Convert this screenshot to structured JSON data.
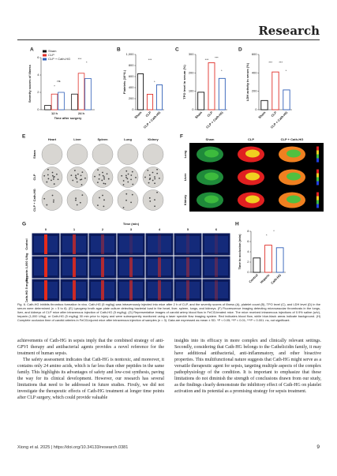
{
  "header": {
    "title": "Research"
  },
  "figure": {
    "panels": [
      "A",
      "B",
      "C",
      "D",
      "E",
      "F",
      "G",
      "H"
    ],
    "charts": [
      {
        "type": "bar",
        "ylabel": "Severity scores of illness",
        "xlabel": "Time after surgery",
        "categories": [
          "12 h",
          "24 h"
        ],
        "series": [
          {
            "name": "Sham",
            "color": "#111111",
            "values": [
              0.5,
              1.8
            ]
          },
          {
            "name": "CLP",
            "color": "#e0312b",
            "values": [
              1.8,
              4.2
            ]
          },
          {
            "name": "CLP + Cath-HG",
            "color": "#2f5fb8",
            "values": [
              2.0,
              3.6
            ]
          }
        ],
        "ylim": [
          0,
          6
        ],
        "yticks": [
          0,
          2,
          4,
          6
        ],
        "annotations": [
          "*",
          "ns",
          "***",
          "*"
        ]
      },
      {
        "type": "bar",
        "ylabel": "Platelets (10⁹/L)",
        "categories": [
          "Sham",
          "CLP",
          "CLP + Cath-HG"
        ],
        "values": [
          650,
          280,
          450
        ],
        "colors": [
          "#111111",
          "#e0312b",
          "#2f5fb8"
        ],
        "ylim": [
          0,
          1000
        ],
        "yticks": [
          0,
          200,
          400,
          600,
          800,
          {
            "value": 1000,
            "label": "1,000"
          }
        ],
        "annotations": [
          "***",
          "*"
        ]
      },
      {
        "type": "bar",
        "ylabel": "TPO level in serum (%)",
        "categories": [
          "Sham",
          "CLP",
          "CLP + Cath-HG"
        ],
        "values": [
          95,
          255,
          170
        ],
        "colors": [
          "#111111",
          "#e0312b",
          "#2f5fb8"
        ],
        "ylim": [
          0,
          300
        ],
        "yticks": [
          0,
          100,
          200,
          300
        ],
        "annotations": [
          "***",
          "***",
          "*"
        ]
      },
      {
        "type": "bar",
        "ylabel": "LDH activity in serum (%)",
        "categories": [
          "Sham",
          "CLP",
          "CLP + Cath-HG"
        ],
        "values": [
          100,
          410,
          215
        ],
        "colors": [
          "#111111",
          "#e0312b",
          "#2f5fb8"
        ],
        "ylim": [
          0,
          600
        ],
        "yticks": [
          0,
          200,
          400,
          600
        ],
        "annotations": [
          "***",
          "***",
          "*"
        ]
      },
      {
        "type": "bar",
        "ylabel": "Time to occlusion (min)",
        "categories": [
          "Control",
          "Heparin",
          "Cath-HG"
        ],
        "values": [
          2.8,
          5.3,
          4.8
        ],
        "colors": [
          "#111111",
          "#e0312b",
          "#2f5fb8"
        ],
        "ylim": [
          0,
          8
        ],
        "yticks": [
          0,
          2,
          4,
          6,
          8
        ],
        "annotations": [
          "*",
          "*"
        ]
      }
    ],
    "plates": {
      "columns": [
        "Heart",
        "Liver",
        "Spleen",
        "Lung",
        "Kidney"
      ],
      "rows": [
        "Sham",
        "CLP",
        "CLP + Cath-HG"
      ]
    },
    "fluorescence": {
      "columns": [
        "Sham",
        "CLP",
        "CLP + Cath-HG"
      ],
      "rows": [
        "Lung",
        "Liver",
        "Kidney"
      ]
    },
    "flow": {
      "title": "Time (min)",
      "columns": [
        0,
        1,
        2,
        3,
        4,
        5,
        6
      ],
      "rows": [
        "Control",
        "Heparin 1,000 U/kg",
        "Cath-HG 5 mg/kg"
      ]
    }
  },
  "caption": "Fig. 6. Cath-HG inhibits thrombus formation in vivo. Cath-HG (5 mg/kg) was intravenously injected into mice after 2 h of CLP, and the severity scores of illness (A), platelet count (B), TPO level (C), and LDH level (D) in the serum were determined (n = 5 to 6). (E) Lysogeny broth agar plate culture detecting bacterial load in the heart, liver, spleen, lungs, and kidneys. (F) Fluorescence imaging detecting microvascular thrombosis in the lungs, liver, and kidneys of CLP mice after intravenous injection of Cath-HG (5 mg/kg). (G) Representative images of carotid artery blood flow in FeCl3-treated mice. The mice received intravenous injections of 0.9% saline (w/v), heparin (1,000 U/kg), or Cath-HG (5 mg/kg) 30 min prior to injury and were subsequently monitored using a laser speckle flow imaging system. Red indicates blood flow, while blue-black areas indicate background. (H) Complete occlusion time of carotid arteries in FeCl3-injured mice after intravenous injection of samples (n = 3). Data are expressed as mean ± SD. *P < 0.05; **P < 0.01; ***P < 0.001. ns, not significant.",
  "body": {
    "left": [
      "achievements of Cath-HG in sepsis imply that the combined strategy of anti-GPVI therapy and antibacterial agents provides a novel reference for the treatment of human sepsis.",
      "The safety assessment indicates that Cath-HG is nontoxic, and moreover, it contains only 24 amino acids, which is far less than other peptides in the same family. This highlights its advantages of safety and low-cost synthesis, paving the way for its clinical development. However, our research has several limitations that need to be addressed in future studies. Firstly, we did not investigate the therapeutic effects of Cath-HG treatment at longer time points after CLP surgery, which could provide valuable"
    ],
    "right": [
      "insights into its efficacy in more complex and clinically relevant settings. Secondly, considering that Cath-HG belongs to the Cathelicidin family, it may have additional antibacterial, anti-inflammatory, and other bioactive properties. This multifunctional nature suggests that Cath-HG might serve as a versatile therapeutic agent for sepsis, targeting multiple aspects of the complex pathophysiology of the condition. It is important to emphasize that these limitations do not diminish the strength of conclusions drawn from our study, as the findings clearly demonstrate the inhibitory effect of Cath-HG on platelet activation and its potential as a promising strategy for sepsis treatment."
    ]
  },
  "footer": {
    "citation": "Xiong et al. 2025 | https://doi.org/10.34133/research.0381",
    "page": "9"
  }
}
